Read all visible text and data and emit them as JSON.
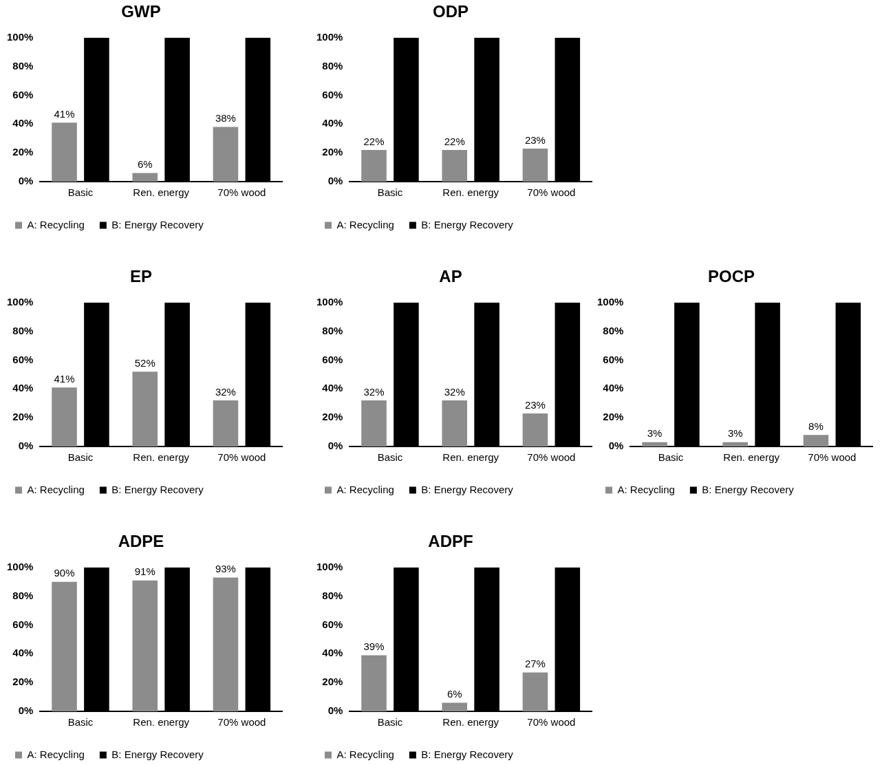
{
  "chart_data": [
    {
      "type": "bar",
      "title": "GWP",
      "categories": [
        "Basic",
        "Ren. energy",
        "70% wood"
      ],
      "ylim": [
        0,
        100
      ],
      "yticks": [
        {
          "value": 0,
          "label": "0%"
        },
        {
          "value": 20,
          "label": "20%"
        },
        {
          "value": 40,
          "label": "40%"
        },
        {
          "value": 60,
          "label": "60%"
        },
        {
          "value": 80,
          "label": "80%"
        },
        {
          "value": 100,
          "label": "100%"
        }
      ],
      "legend": "bottom",
      "series": [
        {
          "name": "A: Recycling",
          "color": "#8c8c8c",
          "values": [
            41,
            6,
            38
          ],
          "value_labels": [
            "41%",
            "6%",
            "38%"
          ]
        },
        {
          "name": "B: Energy Recovery",
          "color": "#000000",
          "values": [
            100,
            100,
            100
          ]
        }
      ]
    },
    {
      "type": "bar",
      "title": "ODP",
      "categories": [
        "Basic",
        "Ren. energy",
        "70% wood"
      ],
      "ylim": [
        0,
        100
      ],
      "yticks": [
        {
          "value": 0,
          "label": "0%"
        },
        {
          "value": 20,
          "label": "20%"
        },
        {
          "value": 40,
          "label": "40%"
        },
        {
          "value": 60,
          "label": "60%"
        },
        {
          "value": 80,
          "label": "80%"
        },
        {
          "value": 100,
          "label": "100%"
        }
      ],
      "legend": "bottom",
      "series": [
        {
          "name": "A: Recycling",
          "color": "#8c8c8c",
          "values": [
            22,
            22,
            23
          ],
          "value_labels": [
            "22%",
            "22%",
            "23%"
          ]
        },
        {
          "name": "B: Energy Recovery",
          "color": "#000000",
          "values": [
            100,
            100,
            100
          ]
        }
      ]
    },
    {
      "type": "bar",
      "title": "EP",
      "categories": [
        "Basic",
        "Ren. energy",
        "70% wood"
      ],
      "ylim": [
        0,
        100
      ],
      "yticks": [
        {
          "value": 0,
          "label": "0%"
        },
        {
          "value": 20,
          "label": "20%"
        },
        {
          "value": 40,
          "label": "40%"
        },
        {
          "value": 60,
          "label": "60%"
        },
        {
          "value": 80,
          "label": "80%"
        },
        {
          "value": 100,
          "label": "100%"
        }
      ],
      "legend": "bottom",
      "series": [
        {
          "name": "A: Recycling",
          "color": "#8c8c8c",
          "values": [
            41,
            52,
            32
          ],
          "value_labels": [
            "41%",
            "52%",
            "32%"
          ]
        },
        {
          "name": "B: Energy Recovery",
          "color": "#000000",
          "values": [
            100,
            100,
            100
          ]
        }
      ]
    },
    {
      "type": "bar",
      "title": "AP",
      "categories": [
        "Basic",
        "Ren. energy",
        "70% wood"
      ],
      "ylim": [
        0,
        100
      ],
      "yticks": [
        {
          "value": 0,
          "label": "0%"
        },
        {
          "value": 20,
          "label": "20%"
        },
        {
          "value": 40,
          "label": "40%"
        },
        {
          "value": 60,
          "label": "60%"
        },
        {
          "value": 80,
          "label": "80%"
        },
        {
          "value": 100,
          "label": "100%"
        }
      ],
      "legend": "bottom",
      "series": [
        {
          "name": "A: Recycling",
          "color": "#8c8c8c",
          "values": [
            32,
            32,
            23
          ],
          "value_labels": [
            "32%",
            "32%",
            "23%"
          ]
        },
        {
          "name": "B: Energy Recovery",
          "color": "#000000",
          "values": [
            100,
            100,
            100
          ]
        }
      ]
    },
    {
      "type": "bar",
      "title": "POCP",
      "categories": [
        "Basic",
        "Ren. energy",
        "70% wood"
      ],
      "ylim": [
        0,
        100
      ],
      "yticks": [
        {
          "value": 0,
          "label": "0%"
        },
        {
          "value": 20,
          "label": "20%"
        },
        {
          "value": 40,
          "label": "40%"
        },
        {
          "value": 60,
          "label": "60%"
        },
        {
          "value": 80,
          "label": "80%"
        },
        {
          "value": 100,
          "label": "100%"
        }
      ],
      "legend": "bottom",
      "series": [
        {
          "name": "A: Recycling",
          "color": "#8c8c8c",
          "values": [
            3,
            3,
            8
          ],
          "value_labels": [
            "3%",
            "3%",
            "8%"
          ]
        },
        {
          "name": "B: Energy Recovery",
          "color": "#000000",
          "values": [
            100,
            100,
            100
          ]
        }
      ]
    },
    {
      "type": "bar",
      "title": "ADPE",
      "categories": [
        "Basic",
        "Ren. energy",
        "70% wood"
      ],
      "ylim": [
        0,
        100
      ],
      "yticks": [
        {
          "value": 0,
          "label": "0%"
        },
        {
          "value": 20,
          "label": "20%"
        },
        {
          "value": 40,
          "label": "40%"
        },
        {
          "value": 60,
          "label": "60%"
        },
        {
          "value": 80,
          "label": "80%"
        },
        {
          "value": 100,
          "label": "100%"
        }
      ],
      "legend": "bottom",
      "series": [
        {
          "name": "A: Recycling",
          "color": "#8c8c8c",
          "values": [
            90,
            91,
            93
          ],
          "value_labels": [
            "90%",
            "91%",
            "93%"
          ]
        },
        {
          "name": "B: Energy Recovery",
          "color": "#000000",
          "values": [
            100,
            100,
            100
          ]
        }
      ]
    },
    {
      "type": "bar",
      "title": "ADPF",
      "categories": [
        "Basic",
        "Ren. energy",
        "70% wood"
      ],
      "ylim": [
        0,
        100
      ],
      "yticks": [
        {
          "value": 0,
          "label": "0%"
        },
        {
          "value": 20,
          "label": "20%"
        },
        {
          "value": 40,
          "label": "40%"
        },
        {
          "value": 60,
          "label": "60%"
        },
        {
          "value": 80,
          "label": "80%"
        },
        {
          "value": 100,
          "label": "100%"
        }
      ],
      "legend": "bottom",
      "series": [
        {
          "name": "A: Recycling",
          "color": "#8c8c8c",
          "values": [
            39,
            6,
            27
          ],
          "value_labels": [
            "39%",
            "6%",
            "27%"
          ]
        },
        {
          "name": "B: Energy Recovery",
          "color": "#000000",
          "values": [
            100,
            100,
            100
          ]
        }
      ]
    }
  ]
}
